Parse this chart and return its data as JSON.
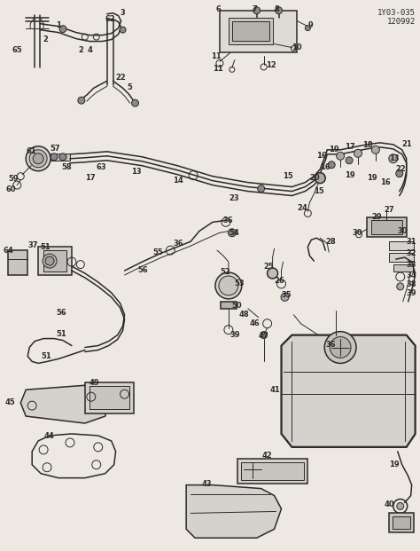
{
  "bg_color": "#ede9e2",
  "line_color": "#2a2a2a",
  "ref_code": "1Y03-035\n120992",
  "fig_width": 4.74,
  "fig_height": 6.21,
  "dpi": 100
}
